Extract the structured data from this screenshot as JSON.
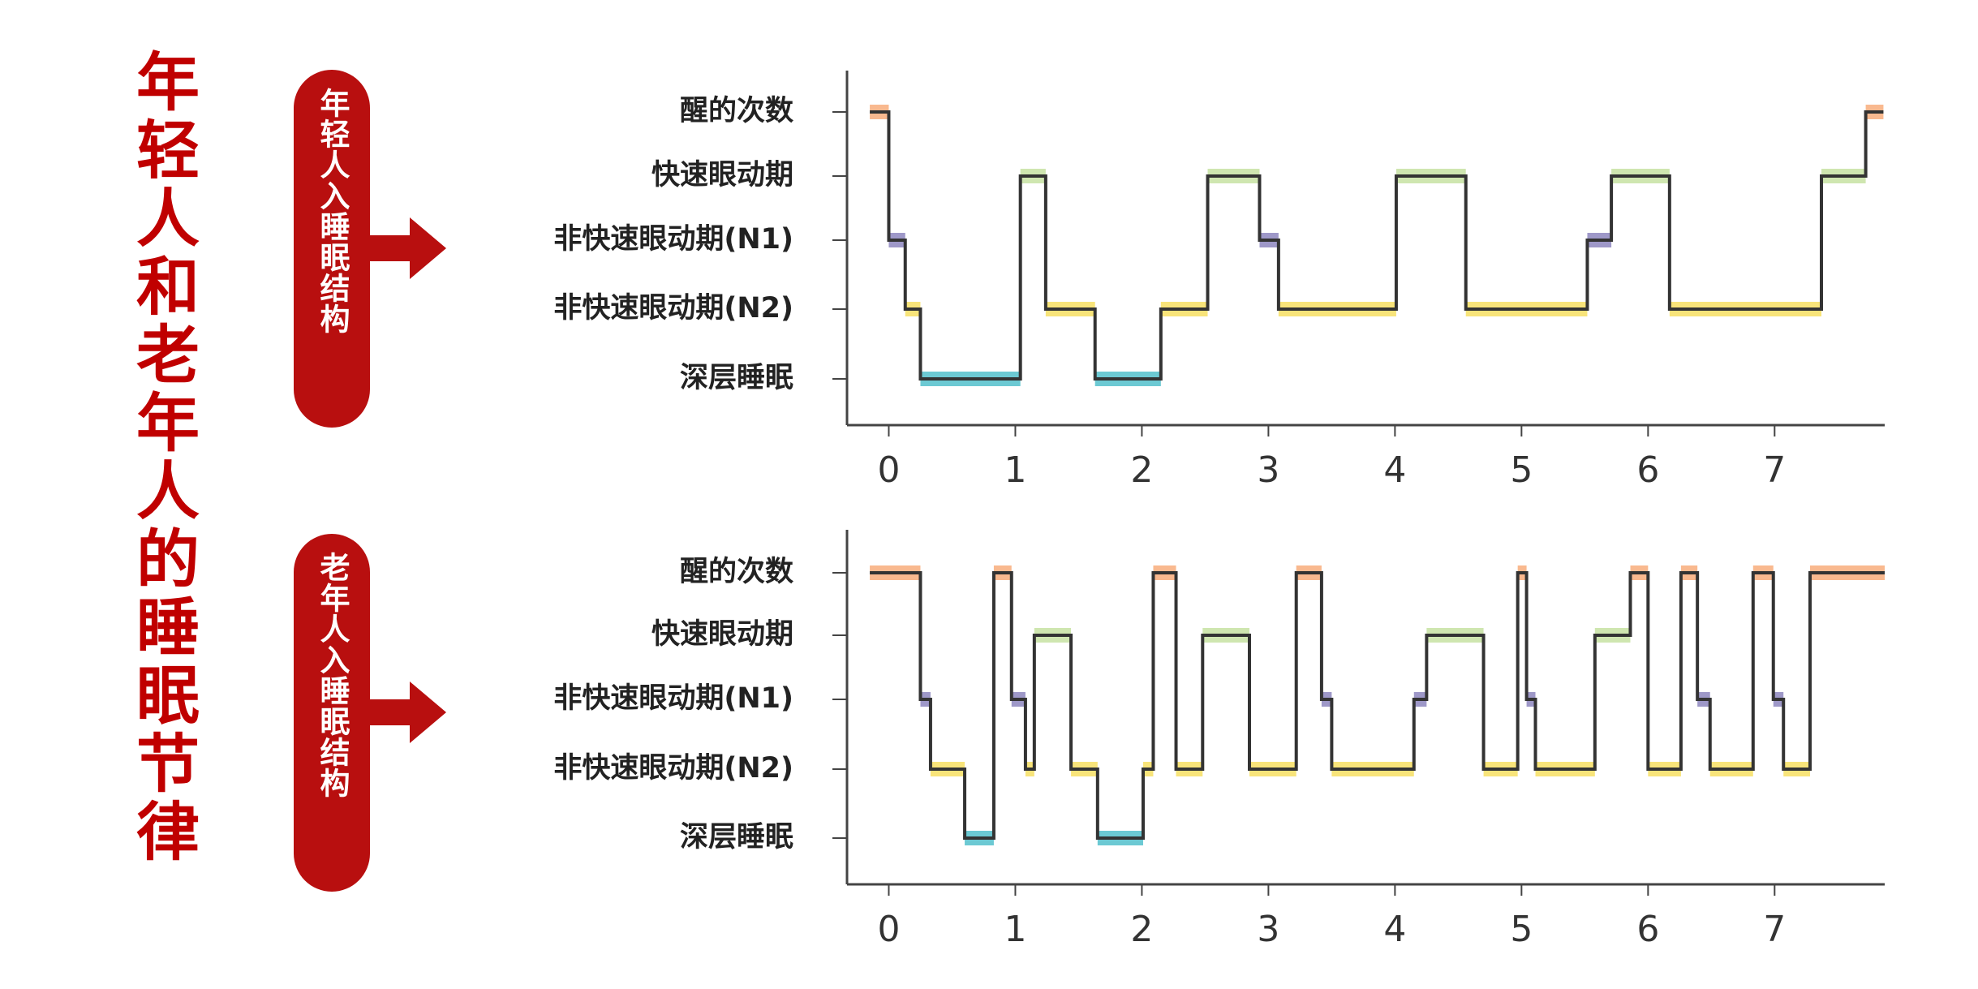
{
  "title": "年轻人和老年人的睡眠节律",
  "chart_data": [
    {
      "type": "step",
      "label": "年轻人入睡眠结构",
      "y_categories": [
        "醒的次数",
        "快速眼动期",
        "非快速眼动期(N1)",
        "非快速眼动期(N2)",
        "深层睡眠"
      ],
      "stage_colors": [
        "#f9b98f",
        "#cfe6b0",
        "#9e98c8",
        "#f8e47a",
        "#6cc9d3"
      ],
      "line_color": "#333333",
      "x": [
        -0.15,
        0.0,
        0.13,
        0.25,
        1.04,
        1.24,
        1.63,
        2.15,
        2.52,
        2.93,
        3.08,
        4.01,
        4.56,
        5.52,
        5.71,
        6.17,
        7.37,
        7.72,
        7.86
      ],
      "values": [
        "醒的次数",
        "非快速眼动期(N1)",
        "非快速眼动期(N2)",
        "深层睡眠",
        "快速眼动期",
        "非快速眼动期(N2)",
        "深层睡眠",
        "非快速眼动期(N2)",
        "快速眼动期",
        "非快速眼动期(N1)",
        "非快速眼动期(N2)",
        "快速眼动期",
        "非快速眼动期(N2)",
        "非快速眼动期(N1)",
        "快速眼动期",
        "非快速眼动期(N2)",
        "快速眼动期",
        "醒的次数",
        "醒的次数"
      ],
      "xlim": [
        -0.33,
        7.87
      ],
      "xticks": [
        0,
        1,
        2,
        3,
        4,
        5,
        6,
        7
      ]
    },
    {
      "type": "step",
      "label": "老年人入睡眠结构",
      "y_categories": [
        "醒的次数",
        "快速眼动期",
        "非快速眼动期(N1)",
        "非快速眼动期(N2)",
        "深层睡眠"
      ],
      "stage_colors": [
        "#f9b98f",
        "#cfe6b0",
        "#9e98c8",
        "#f8e47a",
        "#6cc9d3"
      ],
      "line_color": "#333333",
      "x": [
        -0.15,
        0.25,
        0.33,
        0.6,
        0.83,
        0.97,
        1.08,
        1.15,
        1.44,
        1.65,
        2.01,
        2.09,
        2.27,
        2.48,
        2.85,
        3.22,
        3.42,
        3.5,
        4.15,
        4.25,
        4.7,
        4.97,
        5.04,
        5.11,
        5.58,
        5.86,
        6.0,
        6.26,
        6.39,
        6.49,
        6.83,
        6.99,
        7.07,
        7.28,
        7.87
      ],
      "values": [
        "醒的次数",
        "非快速眼动期(N1)",
        "非快速眼动期(N2)",
        "深层睡眠",
        "醒的次数",
        "非快速眼动期(N1)",
        "非快速眼动期(N2)",
        "快速眼动期",
        "非快速眼动期(N2)",
        "深层睡眠",
        "非快速眼动期(N2)",
        "醒的次数",
        "非快速眼动期(N2)",
        "快速眼动期",
        "非快速眼动期(N2)",
        "醒的次数",
        "非快速眼动期(N1)",
        "非快速眼动期(N2)",
        "非快速眼动期(N1)",
        "快速眼动期",
        "非快速眼动期(N2)",
        "醒的次数",
        "非快速眼动期(N1)",
        "非快速眼动期(N2)",
        "快速眼动期",
        "醒的次数",
        "非快速眼动期(N2)",
        "醒的次数",
        "非快速眼动期(N1)",
        "非快速眼动期(N2)",
        "醒的次数",
        "非快速眼动期(N1)",
        "非快速眼动期(N2)",
        "醒的次数",
        "醒的次数"
      ],
      "xlim": [
        -0.33,
        7.87
      ],
      "xticks": [
        0,
        1,
        2,
        3,
        4,
        5,
        6,
        7
      ]
    }
  ]
}
